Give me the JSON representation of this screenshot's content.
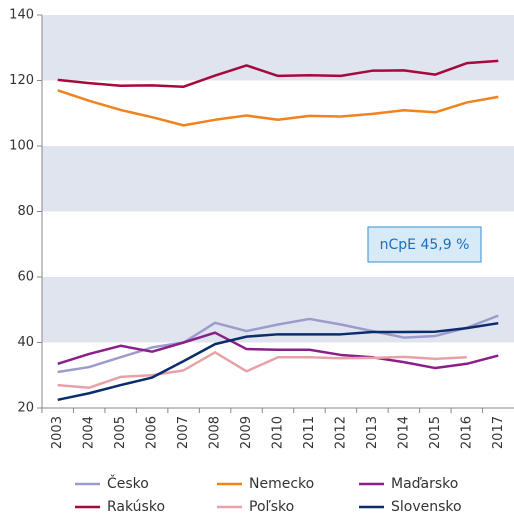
{
  "chart_data": {
    "type": "line",
    "categories": [
      "2003",
      "2004",
      "2005",
      "2006",
      "2007",
      "2008",
      "2009",
      "2010",
      "2011",
      "2012",
      "2013",
      "2014",
      "2015",
      "2016",
      "2017"
    ],
    "series": [
      {
        "name": "Česko",
        "color": "#9c9ccc",
        "values": [
          31,
          32.5,
          35.5,
          38.5,
          40,
          46,
          43.5,
          45.5,
          47.2,
          45.5,
          43.5,
          41.5,
          42,
          44.5,
          48.2
        ]
      },
      {
        "name": "Nemecko",
        "color": "#f0831e",
        "values": [
          117,
          113.8,
          111,
          108.8,
          106.3,
          108,
          109.3,
          108,
          109.2,
          109,
          109.8,
          110.9,
          110.3,
          113.3,
          115
        ]
      },
      {
        "name": "Maďarsko",
        "color": "#8b1f8a",
        "values": [
          33.5,
          36.5,
          39,
          37.2,
          40,
          43,
          38,
          37.8,
          37.8,
          36.2,
          35.5,
          34,
          32.2,
          33.5,
          36
        ]
      },
      {
        "name": "Rakúsko",
        "color": "#a6093d",
        "values": [
          120.2,
          119.2,
          118.4,
          118.5,
          118.1,
          121.5,
          124.6,
          121.4,
          121.6,
          121.4,
          123,
          123.1,
          121.8,
          125.3,
          126
        ]
      },
      {
        "name": "Poľsko",
        "color": "#e8a1a9",
        "values": [
          27,
          26.2,
          29.5,
          30,
          31.5,
          37,
          31.2,
          35.5,
          35.5,
          35.2,
          35.3,
          35.6,
          35,
          35.5,
          null
        ]
      },
      {
        "name": "Slovensko",
        "color": "#0b2d6b",
        "values": [
          22.5,
          24.5,
          27,
          29.3,
          34.3,
          39.5,
          41.8,
          42.5,
          42.5,
          42.5,
          43.2,
          43.2,
          43.3,
          44.4,
          45.9
        ]
      }
    ],
    "ylim": [
      20,
      140
    ],
    "yticks": [
      20,
      40,
      60,
      80,
      100,
      120,
      140
    ],
    "band_color": "#dfe4ef",
    "annotation": "nCpE 45,9 %"
  }
}
